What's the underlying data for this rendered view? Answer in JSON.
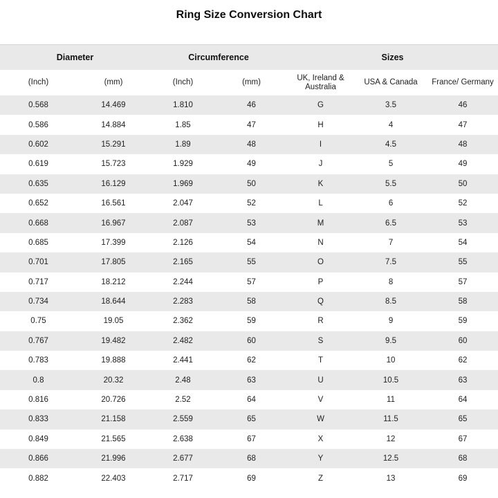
{
  "title": "Ring Size Conversion Chart",
  "chart_data": {
    "type": "table",
    "title": "Ring Size Conversion Chart",
    "groups": [
      {
        "label": "Diameter",
        "span": 2
      },
      {
        "label": "Circumference",
        "span": 2
      },
      {
        "label": "Sizes",
        "span": 3
      }
    ],
    "columns": [
      "(Inch)",
      "(mm)",
      "(Inch)",
      "(mm)",
      "UK, Ireland & Australia",
      "USA & Canada",
      "France/ Germany"
    ],
    "rows": [
      [
        "0.568",
        "14.469",
        "1.810",
        "46",
        "G",
        "3.5",
        "46"
      ],
      [
        "0.586",
        "14.884",
        "1.85",
        "47",
        "H",
        "4",
        "47"
      ],
      [
        "0.602",
        "15.291",
        "1.89",
        "48",
        "I",
        "4.5",
        "48"
      ],
      [
        "0.619",
        "15.723",
        "1.929",
        "49",
        "J",
        "5",
        "49"
      ],
      [
        "0.635",
        "16.129",
        "1.969",
        "50",
        "K",
        "5.5",
        "50"
      ],
      [
        "0.652",
        "16.561",
        "2.047",
        "52",
        "L",
        "6",
        "52"
      ],
      [
        "0.668",
        "16.967",
        "2.087",
        "53",
        "M",
        "6.5",
        "53"
      ],
      [
        "0.685",
        "17.399",
        "2.126",
        "54",
        "N",
        "7",
        "54"
      ],
      [
        "0.701",
        "17.805",
        "2.165",
        "55",
        "O",
        "7.5",
        "55"
      ],
      [
        "0.717",
        "18.212",
        "2.244",
        "57",
        "P",
        "8",
        "57"
      ],
      [
        "0.734",
        "18.644",
        "2.283",
        "58",
        "Q",
        "8.5",
        "58"
      ],
      [
        "0.75",
        "19.05",
        "2.362",
        "59",
        "R",
        "9",
        "59"
      ],
      [
        "0.767",
        "19.482",
        "2.482",
        "60",
        "S",
        "9.5",
        "60"
      ],
      [
        "0.783",
        "19.888",
        "2.441",
        "62",
        "T",
        "10",
        "62"
      ],
      [
        "0.8",
        "20.32",
        "2.48",
        "63",
        "U",
        "10.5",
        "63"
      ],
      [
        "0.816",
        "20.726",
        "2.52",
        "64",
        "V",
        "11",
        "64"
      ],
      [
        "0.833",
        "21.158",
        "2.559",
        "65",
        "W",
        "11.5",
        "65"
      ],
      [
        "0.849",
        "21.565",
        "2.638",
        "67",
        "X",
        "12",
        "67"
      ],
      [
        "0.866",
        "21.996",
        "2.677",
        "68",
        "Y",
        "12.5",
        "68"
      ],
      [
        "0.882",
        "22.403",
        "2.717",
        "69",
        "Z",
        "13",
        "69"
      ]
    ],
    "layout": {
      "header_bg": "#e9e9e9",
      "row_alt_bg": "#e9e9e9",
      "row_bg": "#ffffff",
      "text_color": "#212121",
      "legend_position": "none",
      "grid": "zebra-rows"
    }
  }
}
